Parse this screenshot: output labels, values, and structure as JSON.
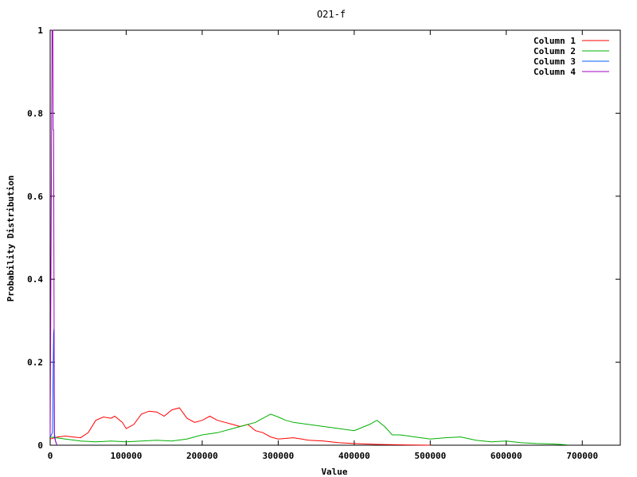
{
  "chart_data": {
    "type": "line",
    "title": "O21-f",
    "xlabel": "Value",
    "ylabel": "Probability Distribution",
    "xlim": [
      0,
      750000
    ],
    "ylim": [
      0,
      1
    ],
    "xticks": [
      0,
      100000,
      200000,
      300000,
      400000,
      500000,
      600000,
      700000
    ],
    "yticks": [
      0,
      0.2,
      0.4,
      0.6,
      0.8,
      1
    ],
    "ytick_labels": [
      "0",
      "0.2",
      "0.4",
      "0.6",
      "0.8",
      "1"
    ],
    "grid": false,
    "legend": "top-right",
    "series": [
      {
        "name": "Column 1",
        "color": "#ff0000",
        "points": [
          [
            0,
            0.015
          ],
          [
            10000,
            0.02
          ],
          [
            20000,
            0.022
          ],
          [
            30000,
            0.02
          ],
          [
            40000,
            0.018
          ],
          [
            50000,
            0.03
          ],
          [
            60000,
            0.06
          ],
          [
            70000,
            0.068
          ],
          [
            80000,
            0.065
          ],
          [
            85000,
            0.07
          ],
          [
            95000,
            0.055
          ],
          [
            100000,
            0.04
          ],
          [
            110000,
            0.05
          ],
          [
            120000,
            0.075
          ],
          [
            130000,
            0.082
          ],
          [
            140000,
            0.08
          ],
          [
            150000,
            0.07
          ],
          [
            160000,
            0.085
          ],
          [
            170000,
            0.09
          ],
          [
            180000,
            0.065
          ],
          [
            190000,
            0.055
          ],
          [
            200000,
            0.06
          ],
          [
            210000,
            0.07
          ],
          [
            220000,
            0.06
          ],
          [
            230000,
            0.055
          ],
          [
            240000,
            0.05
          ],
          [
            250000,
            0.045
          ],
          [
            260000,
            0.05
          ],
          [
            270000,
            0.035
          ],
          [
            280000,
            0.03
          ],
          [
            290000,
            0.02
          ],
          [
            300000,
            0.015
          ],
          [
            320000,
            0.018
          ],
          [
            340000,
            0.012
          ],
          [
            360000,
            0.01
          ],
          [
            380000,
            0.006
          ],
          [
            400000,
            0.004
          ],
          [
            430000,
            0.002
          ],
          [
            460000,
            0.001
          ],
          [
            500000,
            0
          ]
        ]
      },
      {
        "name": "Column 2",
        "color": "#00b000",
        "points": [
          [
            0,
            0.02
          ],
          [
            20000,
            0.015
          ],
          [
            40000,
            0.01
          ],
          [
            60000,
            0.008
          ],
          [
            80000,
            0.01
          ],
          [
            100000,
            0.008
          ],
          [
            120000,
            0.01
          ],
          [
            140000,
            0.012
          ],
          [
            160000,
            0.01
          ],
          [
            180000,
            0.015
          ],
          [
            200000,
            0.025
          ],
          [
            220000,
            0.03
          ],
          [
            240000,
            0.04
          ],
          [
            260000,
            0.05
          ],
          [
            270000,
            0.055
          ],
          [
            280000,
            0.065
          ],
          [
            290000,
            0.075
          ],
          [
            300000,
            0.068
          ],
          [
            310000,
            0.06
          ],
          [
            320000,
            0.055
          ],
          [
            340000,
            0.05
          ],
          [
            360000,
            0.045
          ],
          [
            380000,
            0.04
          ],
          [
            400000,
            0.035
          ],
          [
            420000,
            0.05
          ],
          [
            430000,
            0.06
          ],
          [
            440000,
            0.045
          ],
          [
            450000,
            0.025
          ],
          [
            460000,
            0.025
          ],
          [
            480000,
            0.02
          ],
          [
            500000,
            0.015
          ],
          [
            520000,
            0.018
          ],
          [
            540000,
            0.02
          ],
          [
            560000,
            0.012
          ],
          [
            580000,
            0.008
          ],
          [
            600000,
            0.01
          ],
          [
            620000,
            0.006
          ],
          [
            640000,
            0.004
          ],
          [
            660000,
            0.003
          ],
          [
            680000,
            0.001
          ]
        ]
      },
      {
        "name": "Column 3",
        "color": "#0060ff",
        "points": [
          [
            0,
            0.02
          ],
          [
            3000,
            0.03
          ],
          [
            4500,
            0.27
          ],
          [
            5000,
            0.28
          ],
          [
            5500,
            0.03
          ],
          [
            7000,
            0.01
          ],
          [
            9000,
            0
          ]
        ]
      },
      {
        "name": "Column 4",
        "color": "#a000c0",
        "points": [
          [
            0,
            0.02
          ],
          [
            2500,
            1
          ],
          [
            3500,
            1
          ],
          [
            4000,
            0.76
          ],
          [
            4500,
            0.76
          ],
          [
            5500,
            0.02
          ],
          [
            7000,
            0.01
          ],
          [
            9000,
            0
          ]
        ]
      }
    ]
  }
}
